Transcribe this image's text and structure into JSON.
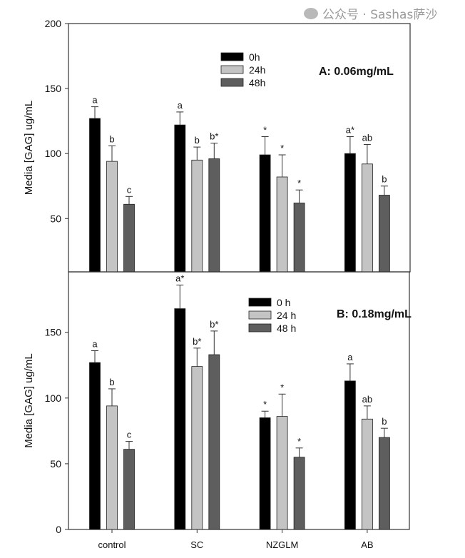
{
  "chart_data": [
    {
      "type": "bar",
      "title": "A:  0.06mg/mL",
      "ylabel": "Media [GAG] ug/mL",
      "xlabel": "",
      "ylim": [
        9,
        200
      ],
      "yticks": [
        50,
        100,
        150,
        200
      ],
      "categories": [
        "control",
        "SC",
        "NZGLM",
        "AB"
      ],
      "legend_position": "top-center",
      "series": [
        {
          "name": "0h",
          "color": "#000000",
          "values": [
            127,
            122,
            99,
            100
          ],
          "errors": [
            9,
            10,
            14,
            13
          ],
          "labels": [
            "a",
            "a",
            "*",
            "a*"
          ]
        },
        {
          "name": "24h",
          "color": "#c4c4c4",
          "values": [
            94,
            95,
            82,
            92
          ],
          "errors": [
            12,
            10,
            17,
            15
          ],
          "labels": [
            "b",
            "b",
            "*",
            "ab"
          ]
        },
        {
          "name": "48h",
          "color": "#5e5e5e",
          "values": [
            61,
            96,
            62,
            68
          ],
          "errors": [
            6,
            12,
            10,
            7
          ],
          "labels": [
            "c",
            "b*",
            "*",
            "b"
          ]
        }
      ]
    },
    {
      "type": "bar",
      "title": "B: 0.18mg/mL",
      "ylabel": "Media [GAG] ug/mL",
      "xlabel": "",
      "ylim": [
        0,
        196
      ],
      "yticks": [
        0,
        50,
        100,
        150
      ],
      "categories": [
        "control",
        "SC",
        "NZGLM",
        "AB"
      ],
      "legend_position": "top-center",
      "series": [
        {
          "name": "0 h",
          "color": "#000000",
          "values": [
            127,
            168,
            85,
            113
          ],
          "errors": [
            9,
            18,
            5,
            13
          ],
          "labels": [
            "a",
            "a*",
            "*",
            "a"
          ]
        },
        {
          "name": "24 h",
          "color": "#c4c4c4",
          "values": [
            94,
            124,
            86,
            84
          ],
          "errors": [
            13,
            14,
            17,
            10
          ],
          "labels": [
            "b",
            "b*",
            "*",
            "ab"
          ]
        },
        {
          "name": "48 h",
          "color": "#5e5e5e",
          "values": [
            61,
            133,
            55,
            70
          ],
          "errors": [
            6,
            18,
            7,
            7
          ],
          "labels": [
            "c",
            "b*",
            "*",
            "b"
          ]
        }
      ]
    }
  ],
  "watermark": "公众号 · Sashas萨沙"
}
